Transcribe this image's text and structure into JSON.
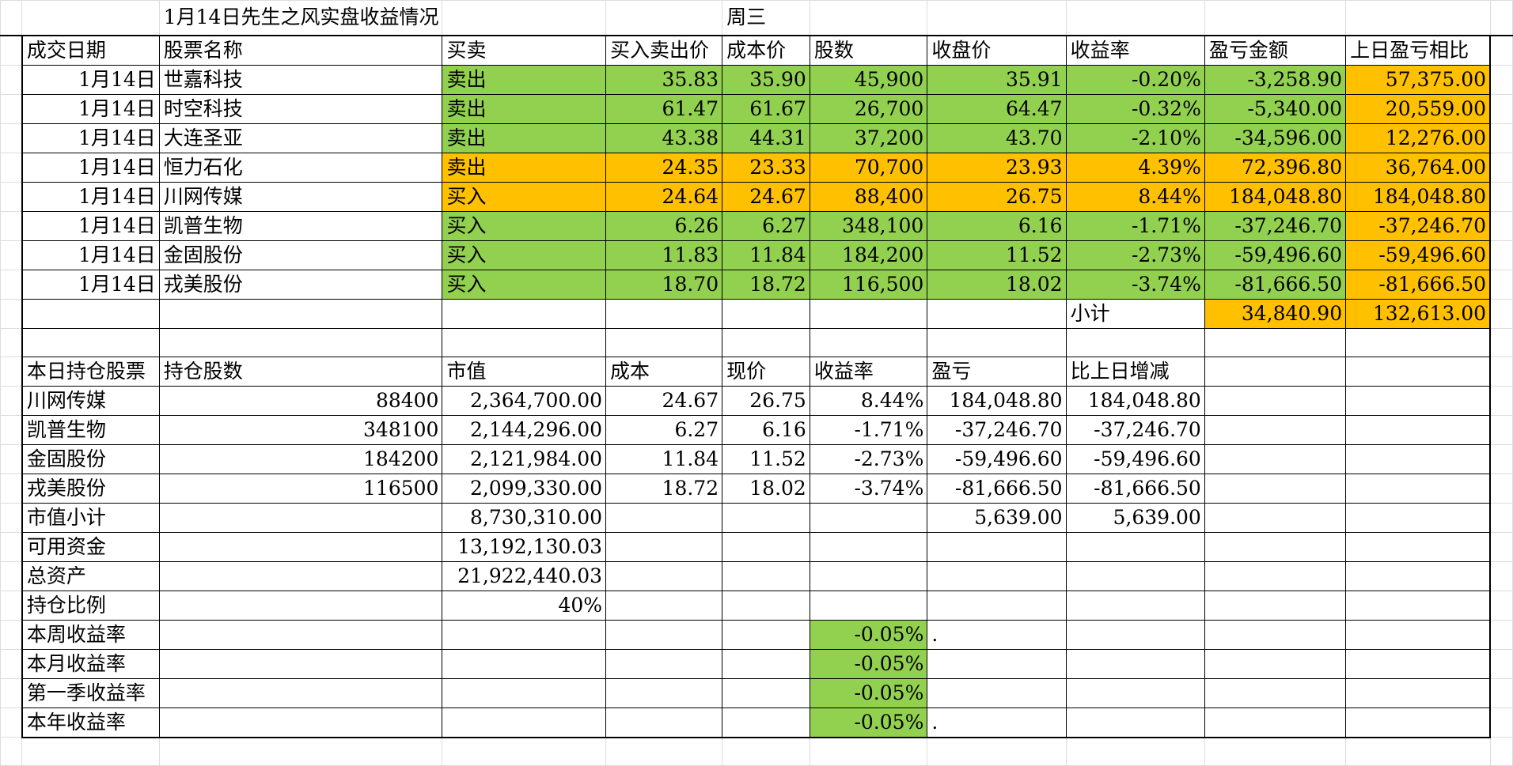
{
  "title": "1月14日先生之风实盘收益情况",
  "weekday": "周三",
  "trade_headers": [
    "成交日期",
    "股票名称",
    "买卖",
    "买入卖出价",
    "成本价",
    "股数",
    "收盘价",
    "收益率",
    "盈亏金额",
    "上日盈亏相比"
  ],
  "trades": [
    {
      "date": "1月14日",
      "name": "世嘉科技",
      "action": "卖出",
      "price": "35.83",
      "cost": "35.90",
      "shares": "45,900",
      "close": "35.91",
      "rate": "-0.20%",
      "pnl": "-3,258.90",
      "prev": "57,375.00",
      "color": "green"
    },
    {
      "date": "1月14日",
      "name": "时空科技",
      "action": "卖出",
      "price": "61.47",
      "cost": "61.67",
      "shares": "26,700",
      "close": "64.47",
      "rate": "-0.32%",
      "pnl": "-5,340.00",
      "prev": "20,559.00",
      "color": "green"
    },
    {
      "date": "1月14日",
      "name": "大连圣亚",
      "action": "卖出",
      "price": "43.38",
      "cost": "44.31",
      "shares": "37,200",
      "close": "43.70",
      "rate": "-2.10%",
      "pnl": "-34,596.00",
      "prev": "12,276.00",
      "color": "green"
    },
    {
      "date": "1月14日",
      "name": "恒力石化",
      "action": "卖出",
      "price": "24.35",
      "cost": "23.33",
      "shares": "70,700",
      "close": "23.93",
      "rate": "4.39%",
      "pnl": "72,396.80",
      "prev": "36,764.00",
      "color": "orange"
    },
    {
      "date": "1月14日",
      "name": "川网传媒",
      "action": "买入",
      "price": "24.64",
      "cost": "24.67",
      "shares": "88,400",
      "close": "26.75",
      "rate": "8.44%",
      "pnl": "184,048.80",
      "prev": "184,048.80",
      "color": "orange"
    },
    {
      "date": "1月14日",
      "name": "凯普生物",
      "action": "买入",
      "price": "6.26",
      "cost": "6.27",
      "shares": "348,100",
      "close": "6.16",
      "rate": "-1.71%",
      "pnl": "-37,246.70",
      "prev": "-37,246.70",
      "color": "green"
    },
    {
      "date": "1月14日",
      "name": "金固股份",
      "action": "买入",
      "price": "11.83",
      "cost": "11.84",
      "shares": "184,200",
      "close": "11.52",
      "rate": "-2.73%",
      "pnl": "-59,496.60",
      "prev": "-59,496.60",
      "color": "green"
    },
    {
      "date": "1月14日",
      "name": "戎美股份",
      "action": "买入",
      "price": "18.70",
      "cost": "18.72",
      "shares": "116,500",
      "close": "18.02",
      "rate": "-3.74%",
      "pnl": "-81,666.50",
      "prev": "-81,666.50",
      "color": "green"
    }
  ],
  "subtotal": {
    "label": "小计",
    "pnl": "34,840.90",
    "prev": "132,613.00"
  },
  "hold_headers": [
    "本日持仓股票",
    "持仓股数",
    "市值",
    "成本",
    "现价",
    "收益率",
    "盈亏",
    "比上日增减"
  ],
  "holdings": [
    {
      "name": "川网传媒",
      "shares": "88400",
      "value": "2,364,700.00",
      "cost": "24.67",
      "price": "26.75",
      "rate": "8.44%",
      "pnl": "184,048.80",
      "delta": "184,048.80"
    },
    {
      "name": "凯普生物",
      "shares": "348100",
      "value": "2,144,296.00",
      "cost": "6.27",
      "price": "6.16",
      "rate": "-1.71%",
      "pnl": "-37,246.70",
      "delta": "-37,246.70"
    },
    {
      "name": "金固股份",
      "shares": "184200",
      "value": "2,121,984.00",
      "cost": "11.84",
      "price": "11.52",
      "rate": "-2.73%",
      "pnl": "-59,496.60",
      "delta": "-59,496.60"
    },
    {
      "name": "戎美股份",
      "shares": "116500",
      "value": "2,099,330.00",
      "cost": "18.72",
      "price": "18.02",
      "rate": "-3.74%",
      "pnl": "-81,666.50",
      "delta": "-81,666.50"
    }
  ],
  "market_subtotal": {
    "label": "市值小计",
    "value": "8,730,310.00",
    "pnl": "5,639.00",
    "delta": "5,639.00"
  },
  "cash": {
    "label": "可用资金",
    "value": "13,192,130.03"
  },
  "total_assets": {
    "label": "总资产",
    "value": "21,922,440.03"
  },
  "position_ratio": {
    "label": "持仓比例",
    "value": "40%"
  },
  "returns": [
    {
      "label": "本周收益率",
      "value": "-0.05%",
      "mark": "."
    },
    {
      "label": "本月收益率",
      "value": "-0.05%",
      "mark": ""
    },
    {
      "label": "第一季收益率",
      "value": "-0.05%",
      "mark": ""
    },
    {
      "label": "本年收益率",
      "value": "-0.05%",
      "mark": "."
    }
  ],
  "colors": {
    "green": "#92d050",
    "orange": "#ffc000"
  }
}
